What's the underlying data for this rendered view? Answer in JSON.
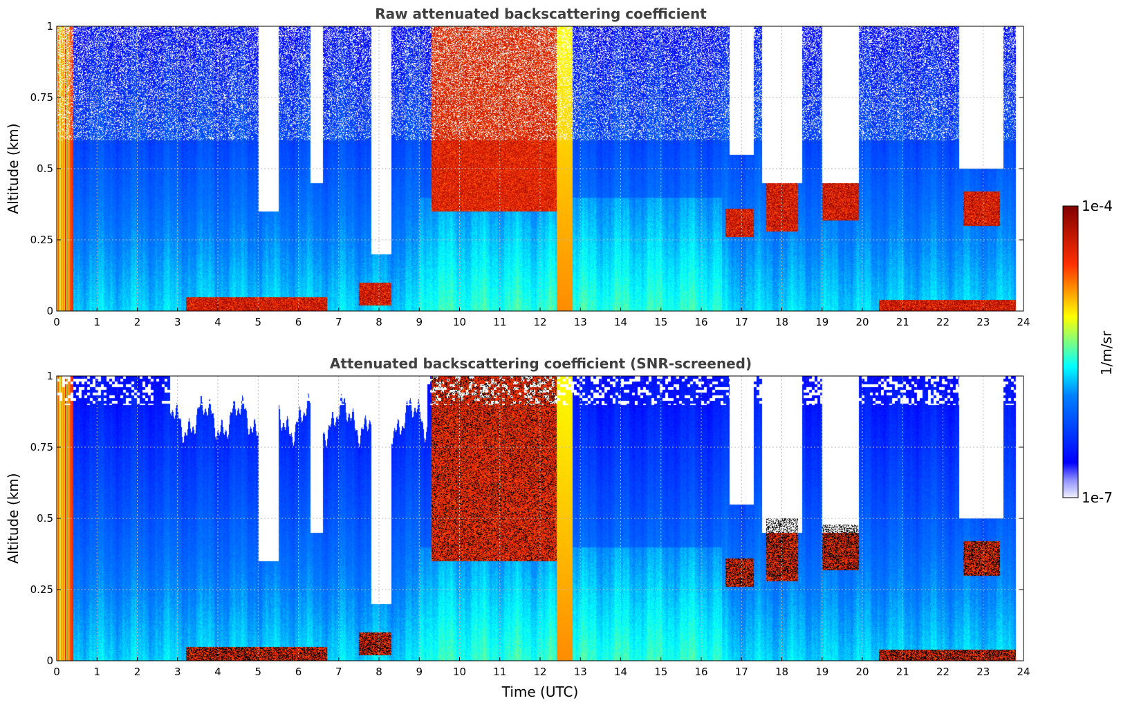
{
  "chart_data": [
    {
      "type": "heatmap",
      "title": "Raw attenuated backscattering coefficient",
      "xlabel": "",
      "ylabel": "Altitude (km)",
      "xlim": [
        0,
        24
      ],
      "ylim": [
        0,
        1
      ],
      "x_ticks": [
        "0",
        "1",
        "2",
        "3",
        "4",
        "5",
        "6",
        "7",
        "8",
        "9",
        "10",
        "11",
        "12",
        "13",
        "14",
        "15",
        "16",
        "17",
        "18",
        "19",
        "20",
        "21",
        "22",
        "23",
        "24"
      ],
      "y_ticks": [
        "0",
        "0.25",
        "0.5",
        "0.75",
        "1"
      ],
      "grid": true,
      "colormap": "jet",
      "screened": false,
      "layers": [
        {
          "t0": 3.2,
          "t1": 6.7,
          "z0": 0.0,
          "z1": 0.05,
          "strength": 1.0
        },
        {
          "t0": 7.5,
          "t1": 8.3,
          "z0": 0.02,
          "z1": 0.1,
          "strength": 1.0
        },
        {
          "t0": 9.3,
          "t1": 12.4,
          "z0": 0.35,
          "z1": 1.0,
          "strength": 0.8
        },
        {
          "t0": 16.6,
          "t1": 17.3,
          "z0": 0.26,
          "z1": 0.36,
          "strength": 1.0
        },
        {
          "t0": 17.6,
          "t1": 18.4,
          "z0": 0.28,
          "z1": 0.5,
          "strength": 1.0
        },
        {
          "t0": 19.0,
          "t1": 19.9,
          "z0": 0.32,
          "z1": 0.48,
          "strength": 1.0
        },
        {
          "t0": 22.5,
          "t1": 23.4,
          "z0": 0.3,
          "z1": 0.42,
          "strength": 1.0
        },
        {
          "t0": 20.4,
          "t1": 23.8,
          "z0": 0.0,
          "z1": 0.04,
          "strength": 1.0
        }
      ]
    },
    {
      "type": "heatmap",
      "title": "Attenuated backscattering coefficient (SNR-screened)",
      "xlabel": "Time (UTC)",
      "ylabel": "Altitude (km)",
      "xlim": [
        0,
        24
      ],
      "ylim": [
        0,
        1
      ],
      "x_ticks": [
        "0",
        "1",
        "2",
        "3",
        "4",
        "5",
        "6",
        "7",
        "8",
        "9",
        "10",
        "11",
        "12",
        "13",
        "14",
        "15",
        "16",
        "17",
        "18",
        "19",
        "20",
        "21",
        "22",
        "23",
        "24"
      ],
      "y_ticks": [
        "0",
        "0.25",
        "0.5",
        "0.75",
        "1"
      ],
      "grid": true,
      "colormap": "jet",
      "screened": true,
      "layers": [
        {
          "t0": 3.2,
          "t1": 6.7,
          "z0": 0.0,
          "z1": 0.05,
          "strength": 1.0
        },
        {
          "t0": 7.5,
          "t1": 8.3,
          "z0": 0.02,
          "z1": 0.1,
          "strength": 1.0
        },
        {
          "t0": 9.3,
          "t1": 12.4,
          "z0": 0.35,
          "z1": 1.0,
          "strength": 0.8
        },
        {
          "t0": 16.6,
          "t1": 17.3,
          "z0": 0.26,
          "z1": 0.36,
          "strength": 1.0
        },
        {
          "t0": 17.6,
          "t1": 18.4,
          "z0": 0.28,
          "z1": 0.5,
          "strength": 1.0
        },
        {
          "t0": 19.0,
          "t1": 19.9,
          "z0": 0.32,
          "z1": 0.48,
          "strength": 1.0
        },
        {
          "t0": 22.5,
          "t1": 23.4,
          "z0": 0.3,
          "z1": 0.42,
          "strength": 1.0
        },
        {
          "t0": 20.4,
          "t1": 23.8,
          "z0": 0.0,
          "z1": 0.04,
          "strength": 1.0
        }
      ]
    }
  ],
  "colorbar": {
    "label": "1/m/sr",
    "max_label": "1e-4",
    "min_label": "1e-7",
    "placement": "right",
    "colormap": "jet"
  }
}
